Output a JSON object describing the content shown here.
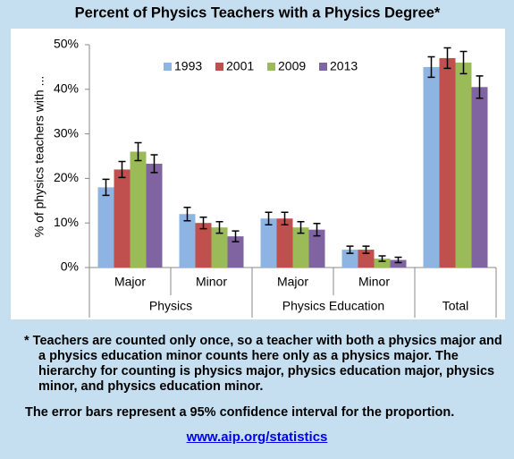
{
  "chart_data": {
    "type": "bar",
    "title": "Percent of Physics Teachers with a Physics Degree*",
    "y_label": "% of physics teachers with ...",
    "categories": [
      "Major",
      "Minor",
      "Major",
      "Minor",
      null
    ],
    "category_groups": [
      "Physics",
      "Physics",
      "Physics Education",
      "Physics Education",
      "Total"
    ],
    "series": [
      {
        "name": "1993",
        "color": "#8db4e2",
        "values": [
          18,
          12,
          11,
          4,
          45
        ],
        "errors": [
          1.8,
          1.5,
          1.4,
          0.8,
          2.3
        ]
      },
      {
        "name": "2001",
        "color": "#c0504d",
        "values": [
          22,
          10,
          11,
          4,
          47
        ],
        "errors": [
          1.8,
          1.3,
          1.4,
          0.8,
          2.3
        ]
      },
      {
        "name": "2009",
        "color": "#9bbb59",
        "values": [
          26,
          9,
          9,
          2,
          46
        ],
        "errors": [
          2,
          1.3,
          1.3,
          0.6,
          2.5
        ]
      },
      {
        "name": "2013",
        "color": "#8064a2",
        "values": [
          23.3,
          7,
          8.5,
          1.7,
          40.5
        ],
        "errors": [
          2,
          1.2,
          1.4,
          0.6,
          2.5
        ]
      }
    ],
    "ylim": [
      0,
      50
    ],
    "yticks": [
      {
        "value": 0,
        "label": "0%"
      },
      {
        "value": 10,
        "label": "10%"
      },
      {
        "value": 20,
        "label": "20%"
      },
      {
        "value": 30,
        "label": "30%"
      },
      {
        "value": 40,
        "label": "40%"
      },
      {
        "value": 50,
        "label": "50%"
      }
    ],
    "grid": false,
    "legend": "top-left",
    "footnote": "* Teachers are counted only once, so a teacher with both a physics major and a physics education minor counts here only as a physics major. The hierarchy for counting is physics major, physics education major, physics minor, and physics education minor.",
    "note": "The error bars represent a 95% confidence interval for the proportion.",
    "link": "www.aip.org/statistics"
  }
}
